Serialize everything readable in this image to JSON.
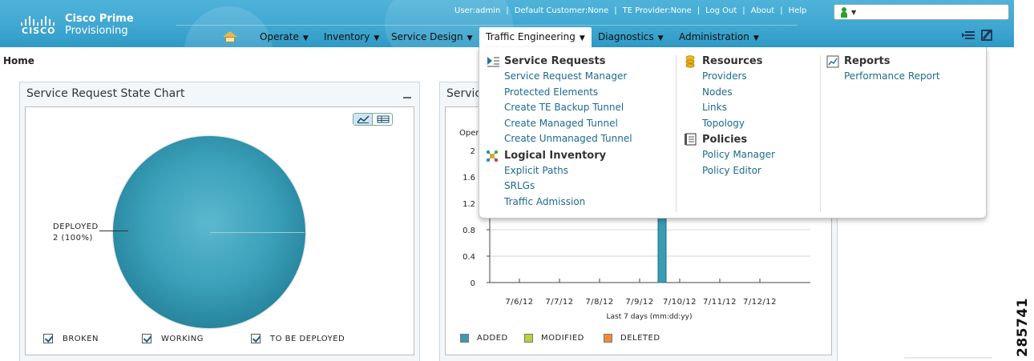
{
  "brand": {
    "logo": "CISCO",
    "line1": "Cisco Prime",
    "line2": "Provisioning"
  },
  "top_links": [
    "User:admin",
    "Default Customer:None",
    "TE Provider:None",
    "Log Out",
    "About",
    "Help"
  ],
  "nav": {
    "items": [
      {
        "label": "Operate"
      },
      {
        "label": "Inventory"
      },
      {
        "label": "Service Design"
      },
      {
        "label": "Traffic Engineering",
        "active": true
      },
      {
        "label": "Diagnostics"
      },
      {
        "label": "Administration"
      }
    ]
  },
  "breadcrumb": "Home",
  "portlet1": {
    "title": "Service Request State Chart",
    "chart_data": {
      "type": "pie",
      "slices": [
        {
          "label": "DEPLOYED",
          "value": 2,
          "percent": "100%"
        }
      ],
      "slice_label": "DEPLOYED",
      "slice_value": "2 (100%)",
      "legend": [
        "BROKEN",
        "WORKING",
        "TO BE DEPLOYED"
      ],
      "color": "#3aa0b9"
    }
  },
  "portlet2": {
    "title": "Servic",
    "chart_data": {
      "type": "bar",
      "ylabel": "Oper",
      "yticks": [
        "0",
        "0.4",
        "0.8",
        "1.2",
        "1.6",
        "2"
      ],
      "ylim": [
        0,
        2
      ],
      "categories": [
        "7/6/12",
        "7/7/12",
        "7/8/12",
        "7/9/12",
        "7/10/12",
        "7/11/12",
        "7/12/12"
      ],
      "xlabel": "Last 7 days (mm:dd:yy)",
      "series": [
        {
          "name": "ADDED",
          "color": "#3a9bb4",
          "values": [
            0,
            0,
            0,
            0,
            2,
            0,
            0
          ]
        },
        {
          "name": "MODIFIED",
          "color": "#b5d33c",
          "values": [
            0,
            0,
            0,
            0,
            0,
            0,
            0
          ]
        },
        {
          "name": "DELETED",
          "color": "#f08a3c",
          "values": [
            0,
            0,
            0,
            0,
            0,
            0,
            0
          ]
        }
      ]
    }
  },
  "mega_menu": {
    "service_requests": {
      "heading": "Service Requests",
      "items": [
        "Service Request Manager",
        "Protected Elements",
        "Create TE Backup Tunnel",
        "Create Managed Tunnel",
        "Create Unmanaged Tunnel"
      ]
    },
    "logical_inventory": {
      "heading": "Logical Inventory",
      "items": [
        "Explicit Paths",
        "SRLGs",
        "Traffic Admission"
      ]
    },
    "resources": {
      "heading": "Resources",
      "items": [
        "Providers",
        "Nodes",
        "Links",
        "Topology"
      ]
    },
    "policies": {
      "heading": "Policies",
      "items": [
        "Policy Manager",
        "Policy Editor"
      ]
    },
    "reports": {
      "heading": "Reports",
      "items": [
        "Performance Report"
      ]
    }
  },
  "figure_number": "285741"
}
